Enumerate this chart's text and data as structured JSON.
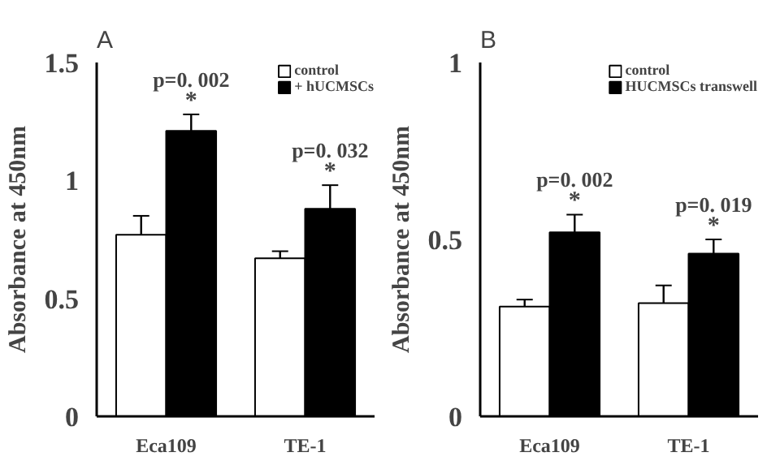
{
  "chart_data": [
    {
      "type": "bar",
      "title": "A",
      "categories": [
        "Eca109",
        "TE-1"
      ],
      "ylabel": "Absorbance at 450nm",
      "ylim": [
        0,
        1.5
      ],
      "yticks": [
        0,
        0.5,
        1,
        1.5
      ],
      "grid": false,
      "legend": "top right",
      "series": [
        {
          "name": "control",
          "color": "#ffffff",
          "values": [
            0.77,
            0.67
          ],
          "errors": [
            0.08,
            0.03
          ]
        },
        {
          "name": "+ hUCMSCs",
          "color": "#000000",
          "values": [
            1.21,
            0.88
          ],
          "errors": [
            0.07,
            0.1
          ]
        }
      ],
      "annotations": [
        "p=0. 002",
        "*",
        "p=0. 032",
        "*"
      ]
    },
    {
      "type": "bar",
      "title": "B",
      "categories": [
        "Eca109",
        "TE-1"
      ],
      "ylabel": "Absorbance at 450nm",
      "ylim": [
        0,
        1
      ],
      "yticks": [
        0,
        0.5,
        1
      ],
      "grid": false,
      "legend": "top right",
      "series": [
        {
          "name": "control",
          "color": "#ffffff",
          "values": [
            0.31,
            0.32
          ],
          "errors": [
            0.02,
            0.05
          ]
        },
        {
          "name": "HUCMSCs transwell",
          "color": "#000000",
          "values": [
            0.52,
            0.46
          ],
          "errors": [
            0.05,
            0.04
          ]
        }
      ],
      "annotations": [
        "p=0. 002",
        "*",
        "p=0. 019",
        "*"
      ]
    }
  ]
}
